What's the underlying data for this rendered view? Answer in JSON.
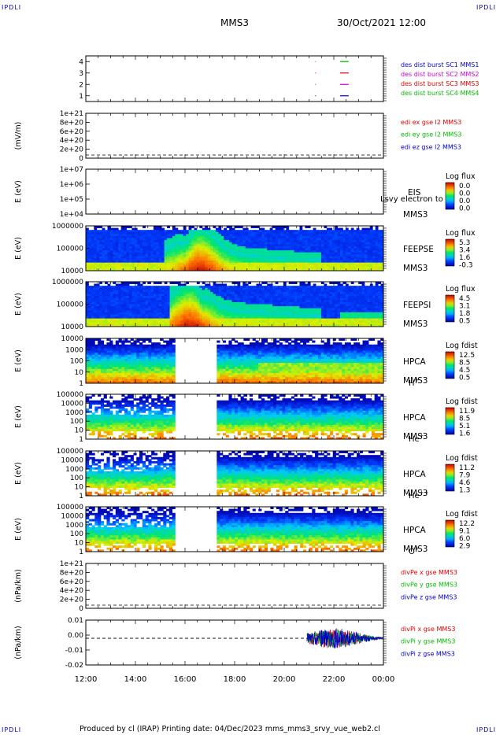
{
  "corners": {
    "tl": "IPDLI",
    "tr": "IPDLI",
    "bl": "IPDLI",
    "br": "IPDLI"
  },
  "header": {
    "spacecraft": "MMS3",
    "datetime": "30/Oct/2021 12:00"
  },
  "footer": {
    "text": "Produced by cl (IRAP)   Printing date: 04/Dec/2023   mms_mms3_srvy_vue_web2.cl"
  },
  "colors": {
    "mms1": "#0000cc",
    "mms2": "#cc00cc",
    "mms3": "#dd0000",
    "mms4": "#00bb00",
    "x_comp": "#dd0000",
    "y_comp": "#00bb00",
    "z_comp": "#0000cc"
  },
  "chart_data": {
    "type": "multi-panel time series",
    "x_axis": {
      "range": [
        "12:00",
        "00:00"
      ],
      "tick_labels": [
        "12:00",
        "14:00",
        "16:00",
        "18:00",
        "20:00",
        "22:00",
        "00:00"
      ]
    },
    "panels": [
      {
        "id": "burst",
        "type": "line",
        "ylim": [
          0.5,
          4.5
        ],
        "tick_labels": [
          "4",
          "3",
          "2",
          "1"
        ],
        "legend": [
          "des dist burst SC1 MMS1",
          "des dist burst SC2 MMS2",
          "des dist burst SC3 MMS3",
          "des dist burst SC4 MMS4"
        ],
        "segments": [
          {
            "sc": 4,
            "from": 22.25,
            "to": 22.6
          },
          {
            "sc": 3,
            "from": 22.25,
            "to": 22.6
          },
          {
            "sc": 2,
            "from": 22.25,
            "to": 22.6
          },
          {
            "sc": 1,
            "from": 22.25,
            "to": 22.6
          }
        ],
        "dots": [
          {
            "sc": 4,
            "at": 21.25
          },
          {
            "sc": 3,
            "at": 21.25
          },
          {
            "sc": 2,
            "at": 21.25
          },
          {
            "sc": 1,
            "at": 21.25
          }
        ]
      },
      {
        "id": "edi",
        "type": "line",
        "ylabel": "(mV/m)",
        "ylim": [
          0,
          1.2e+21
        ],
        "tick_labels": [
          "1e+21",
          "8e+20",
          "6e+20",
          "4e+20",
          "2e+20",
          "0"
        ],
        "legend": [
          "edi ex gse l2 MMS3",
          "edi ey gse l2 MMS3",
          "edi ez gse l2 MMS3"
        ],
        "values": "no data (zero line)"
      },
      {
        "id": "eis",
        "type": "heatmap",
        "ylabel": "E (eV)",
        "scale": "log",
        "ylim": [
          10000.0,
          10000000.0
        ],
        "tick_labels": [
          "1e+07",
          "1e+06",
          "1e+05",
          "1e+04"
        ],
        "label": [
          "EIS",
          "MMS3"
        ],
        "overlay_text": "Lsvy electron to",
        "colorbar": {
          "title": "Log flux",
          "ticks": [
            "0.0",
            "0.0",
            "0.0",
            "0.0"
          ]
        },
        "values": "empty"
      },
      {
        "id": "feepse",
        "type": "heatmap",
        "ylabel": "E (eV)",
        "scale": "log",
        "ylim": [
          10000.0,
          1000000.0
        ],
        "tick_labels": [
          "1000000",
          "100000",
          "10000"
        ],
        "label": [
          "FEEPSE",
          "MMS3"
        ],
        "colorbar": {
          "title": "Log flux",
          "ticks": [
            "5.3",
            "3.4",
            "1.6",
            "-0.3"
          ]
        }
      },
      {
        "id": "feepsi",
        "type": "heatmap",
        "ylabel": "E (eV)",
        "scale": "log",
        "ylim": [
          10000.0,
          1000000.0
        ],
        "tick_labels": [
          "1000000",
          "100000",
          "10000"
        ],
        "label": [
          "FEEPSI",
          "MMS3"
        ],
        "colorbar": {
          "title": "Log flux",
          "ticks": [
            "4.5",
            "3.1",
            "1.8",
            "0.5"
          ]
        }
      },
      {
        "id": "hpca_h",
        "type": "heatmap",
        "ylabel": "E (eV)",
        "scale": "log",
        "ylim": [
          1,
          10000.0
        ],
        "tick_labels": [
          "10000",
          "1000",
          "100",
          "10",
          "1"
        ],
        "label": [
          "HPCA",
          "MMS3"
        ],
        "species": "H",
        "charge": "+",
        "colorbar": {
          "title": "Log fdist",
          "ticks": [
            "12.5",
            "8.5",
            "4.5",
            "0.5"
          ]
        },
        "data_gap": [
          "15:35",
          "17:20"
        ]
      },
      {
        "id": "hpca_he",
        "type": "heatmap",
        "ylabel": "E (eV)",
        "scale": "log",
        "ylim": [
          1,
          100000.0
        ],
        "tick_labels": [
          "100000",
          "10000",
          "1000",
          "100",
          "10",
          "1"
        ],
        "label": [
          "HPCA",
          "MMS3"
        ],
        "species": "He",
        "charge": "+",
        "colorbar": {
          "title": "Log fdist",
          "ticks": [
            "11.9",
            "8.5",
            "5.1",
            "1.6"
          ]
        },
        "data_gap": [
          "15:35",
          "17:20"
        ]
      },
      {
        "id": "hpca_hepp",
        "type": "heatmap",
        "ylabel": "E (eV)",
        "scale": "log",
        "ylim": [
          1,
          100000.0
        ],
        "tick_labels": [
          "100000",
          "10000",
          "1000",
          "100",
          "10",
          "1"
        ],
        "label": [
          "HPCA",
          "MMS3"
        ],
        "species": "He",
        "charge": "++",
        "colorbar": {
          "title": "Log fdist",
          "ticks": [
            "11.2",
            "7.9",
            "4.6",
            "1.3"
          ]
        },
        "data_gap": [
          "15:35",
          "17:20"
        ]
      },
      {
        "id": "hpca_o",
        "type": "heatmap",
        "ylabel": "E (eV)",
        "scale": "log",
        "ylim": [
          1,
          100000.0
        ],
        "tick_labels": [
          "100000",
          "10000",
          "1000",
          "100",
          "10",
          "1"
        ],
        "label": [
          "HPCA",
          "MMS3"
        ],
        "species": "O",
        "charge": "+",
        "colorbar": {
          "title": "Log fdist",
          "ticks": [
            "12.2",
            "9.1",
            "6.0",
            "2.9"
          ]
        },
        "data_gap": [
          "15:35",
          "17:20"
        ]
      },
      {
        "id": "divpe",
        "type": "line",
        "ylabel": "(nPa/km)",
        "ylim": [
          0,
          1.2e+21
        ],
        "tick_labels": [
          "1e+21",
          "8e+20",
          "6e+20",
          "4e+20",
          "2e+20",
          "0"
        ],
        "legend": [
          "divPe x gse MMS3",
          "divPe y gse MMS3",
          "divPe z gse MMS3"
        ],
        "values": "no data (zero line)"
      },
      {
        "id": "divpi",
        "type": "line",
        "ylabel": "(nPa/km)",
        "ylim": [
          -0.025,
          0.017
        ],
        "tick_labels": [
          "0.01",
          "0.00",
          "-0.01",
          "-0.02"
        ],
        "legend": [
          "divPi x gse MMS3",
          "divPi y gse MMS3",
          "divPi z gse MMS3"
        ],
        "active_interval": [
          "20:55",
          "00:00"
        ],
        "amplitude_range": [
          -0.012,
          0.009
        ]
      }
    ]
  }
}
